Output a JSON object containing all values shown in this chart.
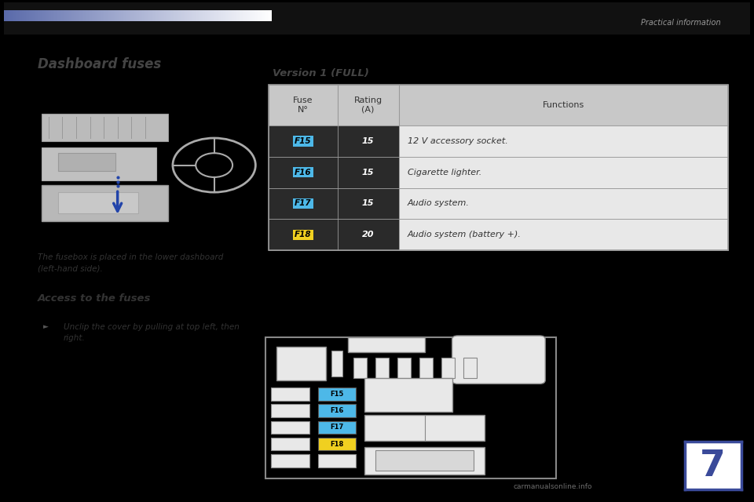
{
  "bg_color": "#000000",
  "page_bg": "#ffffff",
  "header_text": "Practical information",
  "chapter_number": "7",
  "chapter_number_color": "#3a4a9a",
  "title": "Dashboard fuses",
  "caption_text": "The fusebox is placed in the lower dashboard\n(left-hand side).",
  "access_title": "Access to the fuses",
  "access_bullet": "Unclip the cover by pulling at top left, then\nright.",
  "version_title": "Version 1 (FULL)",
  "table_header_bg": "#c8c8c8",
  "table_border_color": "#999999",
  "fuse_data": [
    {
      "fuse": "F15",
      "rating": "15",
      "function": "12 V accessory socket."
    },
    {
      "fuse": "F16",
      "rating": "15",
      "function": "Cigarette lighter."
    },
    {
      "fuse": "F17",
      "rating": "15",
      "function": "Audio system."
    },
    {
      "fuse": "F18",
      "rating": "20",
      "function": "Audio system (battery +)."
    }
  ],
  "fuse_label_colors": {
    "F15": "#4db8e8",
    "F16": "#4db8e8",
    "F17": "#4db8e8",
    "F18": "#f0d020"
  },
  "row_dark_bg": "#2a2a2a",
  "row_light_bg": "#e8e8e8",
  "watermark": "carmanualsonline.info"
}
